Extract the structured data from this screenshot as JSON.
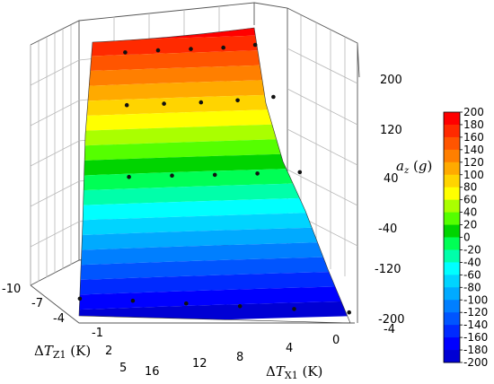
{
  "chart_data": {
    "type": "surface3d",
    "xlabel": "ΔTX1 (K)",
    "ylabel": "ΔTZ1 (K)",
    "zlabel": "az (g)",
    "x_ticks": [
      "0",
      "4",
      "8",
      "12",
      "16"
    ],
    "y_ticks": [
      "-10",
      "-7",
      "-4",
      "-1",
      "2",
      "5"
    ],
    "y_ticks_right": [
      "-4"
    ],
    "z_ticks": [
      "-200",
      "-120",
      "-40",
      "40",
      "120",
      "200"
    ],
    "zlim": [
      -200,
      200
    ],
    "colorbar": {
      "ticks": [
        "200",
        "180",
        "160",
        "140",
        "120",
        "100",
        "80",
        "60",
        "40",
        "20",
        "0",
        "-20",
        "-40",
        "-60",
        "-80",
        "-100",
        "-120",
        "-140",
        "-160",
        "-180",
        "-200"
      ],
      "colors": [
        "#ff0000",
        "#ff2a00",
        "#ff5500",
        "#ff7f00",
        "#ffaa00",
        "#ffd400",
        "#ffff00",
        "#aaff00",
        "#55ff00",
        "#00d400",
        "#00ff55",
        "#00ffaa",
        "#00ffff",
        "#00d4ff",
        "#00aaff",
        "#007fff",
        "#0055ff",
        "#002aff",
        "#0000ff",
        "#0000d4"
      ]
    },
    "grid": true,
    "points": [
      [
        -4,
        -4,
        196
      ],
      [
        -4,
        0,
        192
      ],
      [
        -4,
        4,
        190
      ],
      [
        -4,
        8,
        188
      ],
      [
        -4,
        12,
        185
      ],
      [
        -1,
        -4,
        120
      ],
      [
        -1,
        0,
        115
      ],
      [
        -1,
        4,
        112
      ],
      [
        -1,
        8,
        110
      ],
      [
        -1,
        12,
        108
      ],
      [
        2,
        -4,
        10
      ],
      [
        2,
        0,
        8
      ],
      [
        2,
        4,
        6
      ],
      [
        2,
        8,
        5
      ],
      [
        2,
        12,
        3
      ],
      [
        5,
        -4,
        -195
      ],
      [
        5,
        0,
        -190
      ],
      [
        5,
        4,
        -186
      ],
      [
        5,
        8,
        -182
      ],
      [
        5,
        12,
        -178
      ],
      [
        5,
        16,
        -175
      ]
    ]
  }
}
